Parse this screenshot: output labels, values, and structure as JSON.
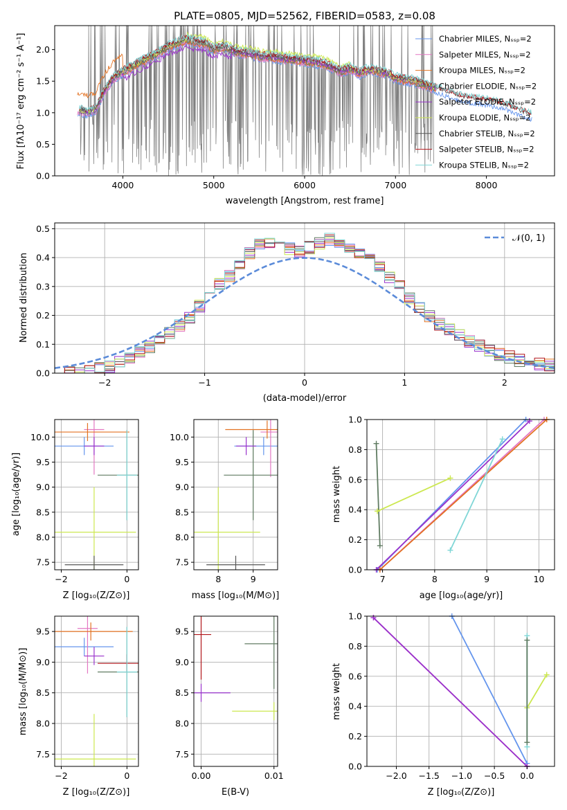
{
  "colors": {
    "Chabrier MILES": "#6495ED",
    "Salpeter MILES": "#E377C2",
    "Kroupa MILES": "#E37222",
    "Chabrier ELODIE": "#607c62",
    "Salpeter ELODIE": "#9932CC",
    "Kroupa ELODIE": "#CCE84F",
    "Chabrier STELIB": "#555555",
    "Salpeter STELIB": "#B0151A",
    "Kroupa STELIB": "#7FD6D6",
    "data": "#808080",
    "normal": "#5B8BD9"
  },
  "chart_data": [
    {
      "type": "line",
      "title": "PLATE=0805, MJD=52562, FIBERID=0583, z=0.08",
      "xlabel": "wavelength [Angstrom, rest frame]",
      "ylabel": "Flux [fλ10⁻¹⁷ erg cm⁻² s⁻¹ A⁻¹]",
      "xlim": [
        3250,
        8750
      ],
      "ylim": [
        0,
        2.38
      ],
      "xticks": [
        4000,
        5000,
        6000,
        7000,
        8000
      ],
      "yticks": [
        0.0,
        0.5,
        1.0,
        1.5,
        2.0
      ],
      "legend_position": "top-right",
      "legend": [
        "Chabrier MILES, Nₛₛₚ=2",
        "Salpeter MILES, Nₛₛₚ=2",
        "Kroupa MILES, Nₛₛₚ=2",
        "Chabrier ELODIE, Nₛₛₚ=2",
        "Salpeter ELODIE, Nₛₛₚ=2",
        "Kroupa ELODIE, Nₛₛₚ=2",
        "Chabrier STELIB, Nₛₛₚ=2",
        "Salpeter STELIB, Nₛₛₚ=2",
        "Kroupa STELIB, Nₛₛₚ=2"
      ],
      "series": [
        {
          "name": "Kroupa STELIB, Nₛₛₚ=2",
          "x": [
            3500,
            3600,
            3700,
            3800,
            3900,
            4000,
            4100,
            4200,
            4300,
            4400,
            4500,
            4600,
            4700,
            4800,
            4900,
            5000,
            5100,
            5200,
            5300,
            5400,
            5500,
            5600,
            5700,
            5800,
            5900,
            6000,
            6100,
            6200,
            6300,
            6400,
            6500,
            6600,
            6700,
            6800,
            6900,
            7000,
            7100,
            7200,
            7300,
            7400,
            7500,
            7600,
            7700,
            7800,
            7900,
            8000,
            8100,
            8200,
            8300,
            8400,
            8500
          ],
          "y": [
            1.05,
            1.0,
            1.05,
            1.35,
            1.55,
            1.65,
            1.72,
            1.8,
            1.88,
            1.95,
            2.05,
            2.1,
            2.15,
            2.12,
            2.1,
            2.0,
            2.05,
            1.98,
            1.95,
            1.93,
            1.9,
            1.88,
            1.87,
            1.85,
            1.83,
            1.82,
            1.8,
            1.78,
            1.72,
            1.65,
            1.7,
            1.62,
            1.68,
            1.66,
            1.63,
            1.55,
            1.52,
            1.5,
            1.45,
            1.4,
            1.35,
            1.3,
            1.25,
            1.22,
            1.2,
            1.18,
            1.15,
            1.12,
            1.05,
            1.0,
            0.95
          ]
        }
      ]
    },
    {
      "type": "line",
      "xlabel": "(data-model)/error",
      "ylabel": "Normed distribution",
      "xlim": [
        -2.5,
        2.5
      ],
      "ylim": [
        0,
        0.52
      ],
      "xticks": [
        -2,
        -1,
        0,
        1,
        2
      ],
      "yticks": [
        0.0,
        0.1,
        0.2,
        0.3,
        0.4,
        0.5
      ],
      "legend_position": "top-right",
      "legend": [
        "𝒩(0, 1)"
      ],
      "series": [
        {
          "name": "𝒩(0, 1)",
          "style": "dashed",
          "function": "standard normal pdf"
        },
        {
          "name": "residual histogram",
          "x": [
            -2.5,
            -2.3,
            -2.1,
            -1.9,
            -1.7,
            -1.5,
            -1.3,
            -1.1,
            -0.9,
            -0.7,
            -0.5,
            -0.3,
            -0.1,
            0.1,
            0.3,
            0.5,
            0.7,
            0.9,
            1.1,
            1.3,
            1.5,
            1.7,
            1.9,
            2.1,
            2.3
          ],
          "y": [
            0.0,
            0.0,
            0.01,
            0.03,
            0.06,
            0.1,
            0.15,
            0.21,
            0.3,
            0.35,
            0.44,
            0.46,
            0.42,
            0.44,
            0.47,
            0.42,
            0.38,
            0.32,
            0.24,
            0.18,
            0.14,
            0.1,
            0.07,
            0.05,
            0.03
          ]
        }
      ]
    },
    {
      "type": "scatter",
      "xlabel": "Z [log₁₀(Z/Z⊙)]",
      "ylabel": "age  [log₁₀(age/yr)]",
      "xlim": [
        -2.2,
        0.35
      ],
      "ylim": [
        7.35,
        10.35
      ],
      "xticks": [
        -2,
        0
      ],
      "yticks": [
        7.5,
        8.0,
        8.5,
        9.0,
        9.5,
        10.0
      ],
      "points": [
        {
          "model": "Chabrier MILES",
          "x": -1.3,
          "y": 9.82
        },
        {
          "model": "Salpeter MILES",
          "x": -1.0,
          "y": 10.15
        },
        {
          "model": "Kroupa MILES",
          "x": -1.2,
          "y": 10.1
        },
        {
          "model": "Chabrier ELODIE",
          "x": 0.0,
          "y": 9.24
        },
        {
          "model": "Salpeter ELODIE",
          "x": -1.0,
          "y": 9.82
        },
        {
          "model": "Kroupa ELODIE",
          "x": -1.0,
          "y": 8.1
        },
        {
          "model": "Chabrier STELIB",
          "x": -1.0,
          "y": 7.45
        },
        {
          "model": "Kroupa STELIB",
          "x": 0.0,
          "y": 9.24
        }
      ]
    },
    {
      "type": "scatter",
      "xlabel": "mass [log₁₀(M/M⊙)]",
      "xlim": [
        7.3,
        9.7
      ],
      "ylim": [
        7.35,
        10.35
      ],
      "xticks": [
        8,
        9
      ],
      "yticks": [
        7.5,
        8.0,
        8.5,
        9.0,
        9.5,
        10.0
      ],
      "points": [
        {
          "model": "Chabrier MILES",
          "x": 9.3,
          "y": 9.82
        },
        {
          "model": "Salpeter MILES",
          "x": 9.5,
          "y": 10.1
        },
        {
          "model": "Kroupa MILES",
          "x": 9.4,
          "y": 10.15
        },
        {
          "model": "Chabrier ELODIE",
          "x": 9.0,
          "y": 9.24
        },
        {
          "model": "Salpeter ELODIE",
          "x": 8.8,
          "y": 9.82
        },
        {
          "model": "Kroupa ELODIE",
          "x": 8.0,
          "y": 8.1
        },
        {
          "model": "Chabrier STELIB",
          "x": 8.5,
          "y": 7.45
        }
      ]
    },
    {
      "type": "line",
      "xlabel": "age  [log₁₀(age/yr)]",
      "ylabel": "mass weight",
      "xlim": [
        6.7,
        10.3
      ],
      "ylim": [
        0,
        1.0
      ],
      "xticks": [
        7,
        8,
        9,
        10
      ],
      "yticks": [
        0.0,
        0.2,
        0.4,
        0.6,
        0.8,
        1.0
      ],
      "series": [
        {
          "name": "Chabrier MILES",
          "x": [
            6.9,
            9.75
          ],
          "y": [
            0.0,
            1.0
          ]
        },
        {
          "name": "Salpeter MILES",
          "x": [
            6.95,
            10.1
          ],
          "y": [
            0.0,
            1.0
          ]
        },
        {
          "name": "Kroupa MILES",
          "x": [
            6.95,
            10.15
          ],
          "y": [
            0.0,
            1.0
          ]
        },
        {
          "name": "Chabrier ELODIE",
          "x": [
            6.88,
            6.95
          ],
          "y": [
            0.84,
            0.16
          ]
        },
        {
          "name": "Salpeter ELODIE",
          "x": [
            6.88,
            9.82
          ],
          "y": [
            0.0,
            0.99
          ]
        },
        {
          "name": "Kroupa ELODIE",
          "x": [
            6.9,
            8.3
          ],
          "y": [
            0.39,
            0.61
          ]
        },
        {
          "name": "Kroupa STELIB",
          "x": [
            8.3,
            9.3
          ],
          "y": [
            0.13,
            0.87
          ]
        }
      ]
    },
    {
      "type": "scatter",
      "xlabel": "Z [log₁₀(Z/Z⊙)]",
      "ylabel": "mass [log₁₀(M/M⊙)]",
      "xlim": [
        -2.2,
        0.35
      ],
      "ylim": [
        7.3,
        9.75
      ],
      "xticks": [
        -2,
        0
      ],
      "yticks": [
        7.5,
        8.0,
        8.5,
        9.0,
        9.5
      ],
      "points": [
        {
          "model": "Chabrier MILES",
          "x": -1.3,
          "y": 9.25
        },
        {
          "model": "Salpeter MILES",
          "x": -1.2,
          "y": 9.55
        },
        {
          "model": "Kroupa MILES",
          "x": -1.1,
          "y": 9.5
        },
        {
          "model": "Chabrier ELODIE",
          "x": 0.0,
          "y": 8.84
        },
        {
          "model": "Salpeter ELODIE",
          "x": -1.0,
          "y": 9.1
        },
        {
          "model": "Kroupa ELODIE",
          "x": -1.0,
          "y": 7.42
        },
        {
          "model": "Salpeter STELIB",
          "x": 0.0,
          "y": 8.98
        },
        {
          "model": "Kroupa STELIB",
          "x": 0.0,
          "y": 8.84
        }
      ]
    },
    {
      "type": "scatter",
      "xlabel": "E(B-V)",
      "xlim": [
        -0.001,
        0.0105
      ],
      "ylim": [
        7.3,
        9.75
      ],
      "xticks": [
        0.0,
        0.01
      ],
      "xticklabels": [
        "0.00",
        "0.01"
      ],
      "yticks": [
        7.5,
        8.0,
        8.5,
        9.0,
        9.5
      ],
      "points": [
        {
          "model": "Salpeter ELODIE",
          "x": 0.0,
          "y": 8.5
        },
        {
          "model": "Salpeter STELIB",
          "x": 0.0,
          "y": 9.45
        },
        {
          "model": "Kroupa ELODIE",
          "x": 0.01,
          "y": 8.2
        },
        {
          "model": "Chabrier ELODIE",
          "x": 0.01,
          "y": 9.3
        }
      ]
    },
    {
      "type": "line",
      "xlabel": "Z [log₁₀(Z/Z⊙)]",
      "ylabel": "mass weight",
      "xlim": [
        -2.45,
        0.42
      ],
      "ylim": [
        0,
        1.0
      ],
      "xticks": [
        -2.0,
        -1.5,
        -1.0,
        -0.5,
        0.0
      ],
      "xticklabels": [
        "−2.0",
        "−1.5",
        "−1.0",
        "−0.5",
        "0.0"
      ],
      "yticks": [
        0.0,
        0.2,
        0.4,
        0.6,
        0.8,
        1.0
      ],
      "series": [
        {
          "name": "Chabrier MILES",
          "x": [
            -1.15,
            0.0
          ],
          "y": [
            1.0,
            0.02
          ]
        },
        {
          "name": "Salpeter MILES",
          "x": [
            -2.35,
            0.0
          ],
          "y": [
            0.99,
            0.0
          ]
        },
        {
          "name": "Salpeter ELODIE",
          "x": [
            -2.35,
            0.0
          ],
          "y": [
            0.99,
            0.0
          ]
        },
        {
          "name": "Kroupa ELODIE",
          "x": [
            0.0,
            0.3
          ],
          "y": [
            0.39,
            0.61
          ]
        },
        {
          "name": "Kroupa STELIB",
          "x": [
            0.0,
            0.0
          ],
          "y": [
            0.13,
            0.87
          ]
        },
        {
          "name": "Chabrier ELODIE",
          "x": [
            0.0,
            0.0
          ],
          "y": [
            0.16,
            0.84
          ]
        }
      ]
    }
  ]
}
